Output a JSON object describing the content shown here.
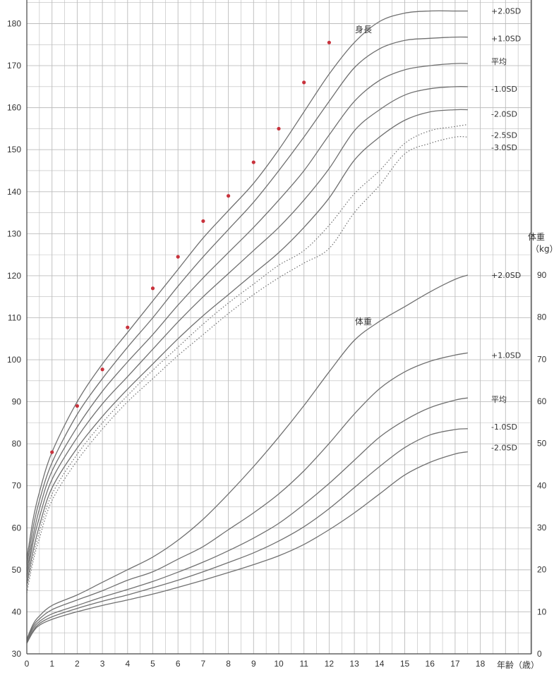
{
  "chart_data": {
    "type": "line",
    "title": "",
    "height_title": "身長",
    "weight_title": "体重",
    "xlabel": "年齢（歳）",
    "right_axis_title": [
      "体重",
      "（kg）"
    ],
    "x_ticks": [
      0,
      1,
      2,
      3,
      4,
      5,
      6,
      7,
      8,
      9,
      10,
      11,
      12,
      13,
      14,
      15,
      16,
      17,
      18
    ],
    "y_left_ticks": [
      30,
      40,
      50,
      60,
      70,
      80,
      90,
      100,
      110,
      120,
      130,
      140,
      150,
      160,
      170,
      180
    ],
    "y_right_ticks": [
      0,
      10,
      20,
      30,
      40,
      50,
      60,
      70,
      80,
      90
    ],
    "xlim": [
      0,
      20
    ],
    "y_left_lim": [
      30,
      185
    ],
    "y_right_lim": [
      0,
      97
    ],
    "grid": true,
    "colors": {
      "grid": "#bcbcbc",
      "curve": "#707070",
      "points": "#c8323c"
    },
    "height_series": [
      {
        "name": "+2.0SD",
        "style": "solid",
        "x": [
          0,
          0.25,
          0.5,
          1,
          2,
          3,
          4,
          5,
          6,
          7,
          8,
          9,
          10,
          11,
          12,
          13,
          14,
          15,
          16,
          17,
          17.5
        ],
        "y": [
          52.5,
          62,
          68.5,
          78,
          90,
          99,
          106.5,
          114,
          121.5,
          129,
          135.5,
          142,
          150,
          159,
          168,
          175.5,
          180.5,
          182.5,
          183,
          183,
          183
        ]
      },
      {
        "name": "+1.0SD",
        "style": "solid",
        "x": [
          0,
          0.25,
          0.5,
          1,
          2,
          3,
          4,
          5,
          6,
          7,
          8,
          9,
          10,
          11,
          12,
          13,
          14,
          15,
          16,
          17,
          17.5
        ],
        "y": [
          51,
          60,
          66.5,
          75.5,
          87,
          95.5,
          103,
          110,
          117.5,
          124.5,
          131,
          137.5,
          145,
          153,
          161.5,
          169.5,
          174,
          176,
          176.5,
          176.8,
          176.8
        ]
      },
      {
        "name": "平均",
        "style": "solid",
        "x": [
          0,
          0.25,
          0.5,
          1,
          2,
          3,
          4,
          5,
          6,
          7,
          8,
          9,
          10,
          11,
          12,
          13,
          14,
          15,
          16,
          17,
          17.5
        ],
        "y": [
          49.5,
          58,
          64.5,
          73.5,
          84,
          92.5,
          99.5,
          106,
          113,
          119.5,
          125.5,
          131.5,
          138,
          145,
          153.5,
          161.5,
          166.5,
          169,
          170,
          170.5,
          170.5
        ]
      },
      {
        "name": "-1.0SD",
        "style": "solid",
        "x": [
          0,
          0.25,
          0.5,
          1,
          2,
          3,
          4,
          5,
          6,
          7,
          8,
          9,
          10,
          11,
          12,
          13,
          14,
          15,
          16,
          17,
          17.5
        ],
        "y": [
          48,
          56.5,
          62.5,
          71.5,
          81.5,
          89.5,
          96,
          102.5,
          109,
          115,
          120.5,
          126,
          131.5,
          138,
          145.5,
          154.5,
          159.5,
          163,
          164.5,
          165,
          165
        ]
      },
      {
        "name": "-2.0SD",
        "style": "solid",
        "x": [
          0,
          0.25,
          0.5,
          1,
          2,
          3,
          4,
          5,
          6,
          7,
          8,
          9,
          10,
          11,
          12,
          13,
          14,
          15,
          16,
          17,
          17.5
        ],
        "y": [
          46.5,
          54.5,
          60.5,
          69.5,
          79,
          86.5,
          93,
          99,
          105,
          110.5,
          115.5,
          120.5,
          125.5,
          131.5,
          138.5,
          147.5,
          153,
          157,
          159,
          159.5,
          159.5
        ]
      },
      {
        "name": "-2.5SD",
        "style": "dotted",
        "x": [
          0,
          0.25,
          0.5,
          1,
          2,
          3,
          4,
          5,
          6,
          7,
          8,
          9,
          10,
          11,
          12,
          13,
          14,
          15,
          16,
          17,
          17.5
        ],
        "y": [
          45.5,
          53,
          59,
          68,
          77.5,
          85,
          91.5,
          97.5,
          103,
          108.5,
          113.5,
          118,
          122.5,
          126,
          132,
          139.5,
          145,
          151.5,
          154.5,
          155.5,
          156
        ]
      },
      {
        "name": "-3.0SD",
        "style": "dotted",
        "x": [
          0,
          0.25,
          0.5,
          1,
          2,
          3,
          4,
          5,
          6,
          7,
          8,
          9,
          10,
          11,
          12,
          13,
          14,
          15,
          16,
          17,
          17.5
        ],
        "y": [
          44.5,
          52,
          57.5,
          66.5,
          76,
          83.5,
          90,
          95.5,
          101,
          106,
          111,
          115.5,
          119.5,
          123,
          126.5,
          135,
          141.5,
          149,
          151.5,
          153,
          153
        ]
      }
    ],
    "weight_series": [
      {
        "name": "+2.0SD",
        "style": "solid",
        "x": [
          0,
          0.25,
          0.5,
          1,
          2,
          3,
          4,
          5,
          6,
          7,
          8,
          9,
          10,
          11,
          12,
          13,
          14,
          15,
          16,
          17,
          17.5
        ],
        "y": [
          3.5,
          7,
          9,
          11.5,
          14,
          17,
          20,
          23,
          27,
          32,
          38,
          44.5,
          51.5,
          59,
          67,
          74.5,
          79,
          82.5,
          86,
          89,
          90
        ]
      },
      {
        "name": "+1.0SD",
        "style": "solid",
        "x": [
          0,
          0.25,
          0.5,
          1,
          2,
          3,
          4,
          5,
          6,
          7,
          8,
          9,
          10,
          11,
          12,
          13,
          14,
          15,
          16,
          17,
          17.5
        ],
        "y": [
          3.3,
          6.5,
          8.3,
          10.5,
          12.8,
          15,
          17.5,
          19.5,
          22.5,
          25.5,
          29.5,
          33.5,
          38,
          43.5,
          50,
          57,
          63,
          67,
          69.5,
          71,
          71.5
        ]
      },
      {
        "name": "平均",
        "style": "solid",
        "x": [
          0,
          0.25,
          0.5,
          1,
          2,
          3,
          4,
          5,
          6,
          7,
          8,
          9,
          10,
          11,
          12,
          13,
          14,
          15,
          16,
          17,
          17.5
        ],
        "y": [
          3.1,
          6,
          7.7,
          9.5,
          11.5,
          13.5,
          15.3,
          17.2,
          19.4,
          21.8,
          24.5,
          27.5,
          31,
          35.5,
          40.5,
          46,
          51.5,
          55.5,
          58.5,
          60.3,
          60.8
        ]
      },
      {
        "name": "-1.0SD",
        "style": "solid",
        "x": [
          0,
          0.25,
          0.5,
          1,
          2,
          3,
          4,
          5,
          6,
          7,
          8,
          9,
          10,
          11,
          12,
          13,
          14,
          15,
          16,
          17,
          17.5
        ],
        "y": [
          2.8,
          5.5,
          7.2,
          8.8,
          10.8,
          12.5,
          14,
          15.7,
          17.5,
          19.5,
          21.7,
          24,
          26.8,
          30.2,
          34.5,
          39.5,
          44.5,
          49,
          52,
          53.3,
          53.5
        ]
      },
      {
        "name": "-2.0SD",
        "style": "solid",
        "x": [
          0,
          0.25,
          0.5,
          1,
          2,
          3,
          4,
          5,
          6,
          7,
          8,
          9,
          10,
          11,
          12,
          13,
          14,
          15,
          16,
          17,
          17.5
        ],
        "y": [
          2.5,
          5.2,
          6.8,
          8.2,
          10,
          11.5,
          12.8,
          14.2,
          15.8,
          17.5,
          19.3,
          21.2,
          23.3,
          26,
          29.5,
          33.5,
          38,
          42.5,
          45.5,
          47.5,
          48
        ]
      }
    ],
    "height_labels": [
      {
        "text": "+2.0SD",
        "y": 183
      },
      {
        "text": "+1.0SD",
        "y": 176.5
      },
      {
        "text": "平均",
        "y": 171
      },
      {
        "text": "-1.0SD",
        "y": 164.5
      },
      {
        "text": "-2.0SD",
        "y": 158.5
      },
      {
        "text": "-2.5SD",
        "y": 153.5
      },
      {
        "text": "-3.0SD",
        "y": 150.5
      }
    ],
    "weight_labels": [
      {
        "text": "+2.0SD",
        "y": 90
      },
      {
        "text": "+1.0SD",
        "y": 71
      },
      {
        "text": "平均",
        "y": 60.5
      },
      {
        "text": "-1.0SD",
        "y": 54
      },
      {
        "text": "-2.0SD",
        "y": 49
      }
    ],
    "points": {
      "name": "",
      "x": [
        1,
        2,
        3,
        4,
        5,
        6,
        7,
        8,
        9,
        10,
        11,
        12
      ],
      "y": [
        78,
        89,
        97.7,
        107.7,
        117,
        124.5,
        133,
        139,
        147,
        155,
        166,
        175.5
      ]
    }
  }
}
